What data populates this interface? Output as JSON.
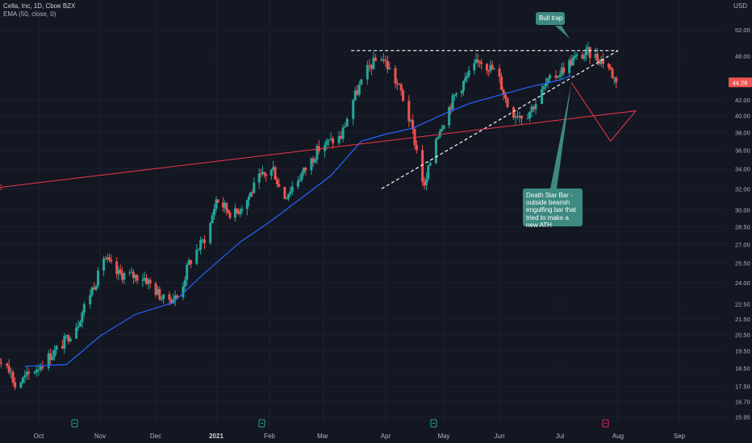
{
  "header": {
    "symbol_line": "Cella, Inc, 1D, Cboe BZX",
    "indicator_line": "EMA (50, close, 0)",
    "currency": "USD"
  },
  "price_label": "44.28",
  "annotations": {
    "bull_trap": "Bull trap",
    "death_star": "Death Star Bar - outside bearish engulfing bar that tried to make a new ATH"
  },
  "colors": {
    "background": "#131722",
    "up": "#26a69a",
    "down": "#ef5350",
    "ema": "#2962ff",
    "callout": "#3d8a82",
    "projection": "#f23645"
  },
  "chart_data": {
    "type": "candlestick",
    "title": "Cella, Inc, 1D, Cboe BZX",
    "y_axis_ticks": [
      "52.00",
      "48.00",
      "44.28",
      "42.00",
      "40.00",
      "38.00",
      "36.00",
      "34.00",
      "32.00",
      "30.00",
      "28.50",
      "27.00",
      "25.50",
      "24.00",
      "22.50",
      "21.50",
      "20.50",
      "19.50",
      "18.50",
      "17.50",
      "16.70",
      "15.95"
    ],
    "x_axis_ticks": [
      "Oct",
      "Nov",
      "Dec",
      "2021",
      "Feb",
      "Mar",
      "Apr",
      "May",
      "Jun",
      "Jul",
      "Aug",
      "Sep"
    ],
    "y_scale": "log",
    "last_price": 44.28,
    "series": [
      {
        "name": "EMA (50, close, 0)",
        "type": "line",
        "points": [
          [
            "Sep 24",
            18.6
          ],
          [
            "Oct 15",
            18.7
          ],
          [
            "Nov 1",
            20.4
          ],
          [
            "Nov 20",
            21.8
          ],
          [
            "Dec 10",
            22.6
          ],
          [
            "Dec 25",
            24.6
          ],
          [
            "Jan 15",
            27.2
          ],
          [
            "Feb 1",
            28.9
          ],
          [
            "Feb 20",
            31.4
          ],
          [
            "Mar 5",
            33.3
          ],
          [
            "Mar 20",
            37.0
          ],
          [
            "Apr 1",
            37.8
          ],
          [
            "Apr 15",
            38.5
          ],
          [
            "May 1",
            40.2
          ],
          [
            "May 15",
            41.5
          ],
          [
            "Jun 1",
            42.6
          ],
          [
            "Jun 15",
            43.6
          ],
          [
            "Jul 1",
            44.6
          ],
          [
            "Jul 7",
            45.2
          ]
        ]
      }
    ],
    "drawings": [
      {
        "name": "resistance",
        "style": "dashed",
        "points": [
          [
            "Mar 15",
            48.8
          ],
          [
            "Aug 1",
            48.8
          ]
        ]
      },
      {
        "name": "support",
        "style": "dashed",
        "points": [
          [
            "Mar 30",
            32.0
          ],
          [
            "Aug 1",
            48.8
          ]
        ]
      },
      {
        "name": "projection",
        "style": "arrow",
        "points": [
          [
            "Jul 7",
            44.3
          ],
          [
            "Jul 28",
            37.0
          ],
          [
            "Aug 10",
            40.6
          ],
          [
            "Sep 10",
            32.1
          ]
        ]
      }
    ]
  }
}
